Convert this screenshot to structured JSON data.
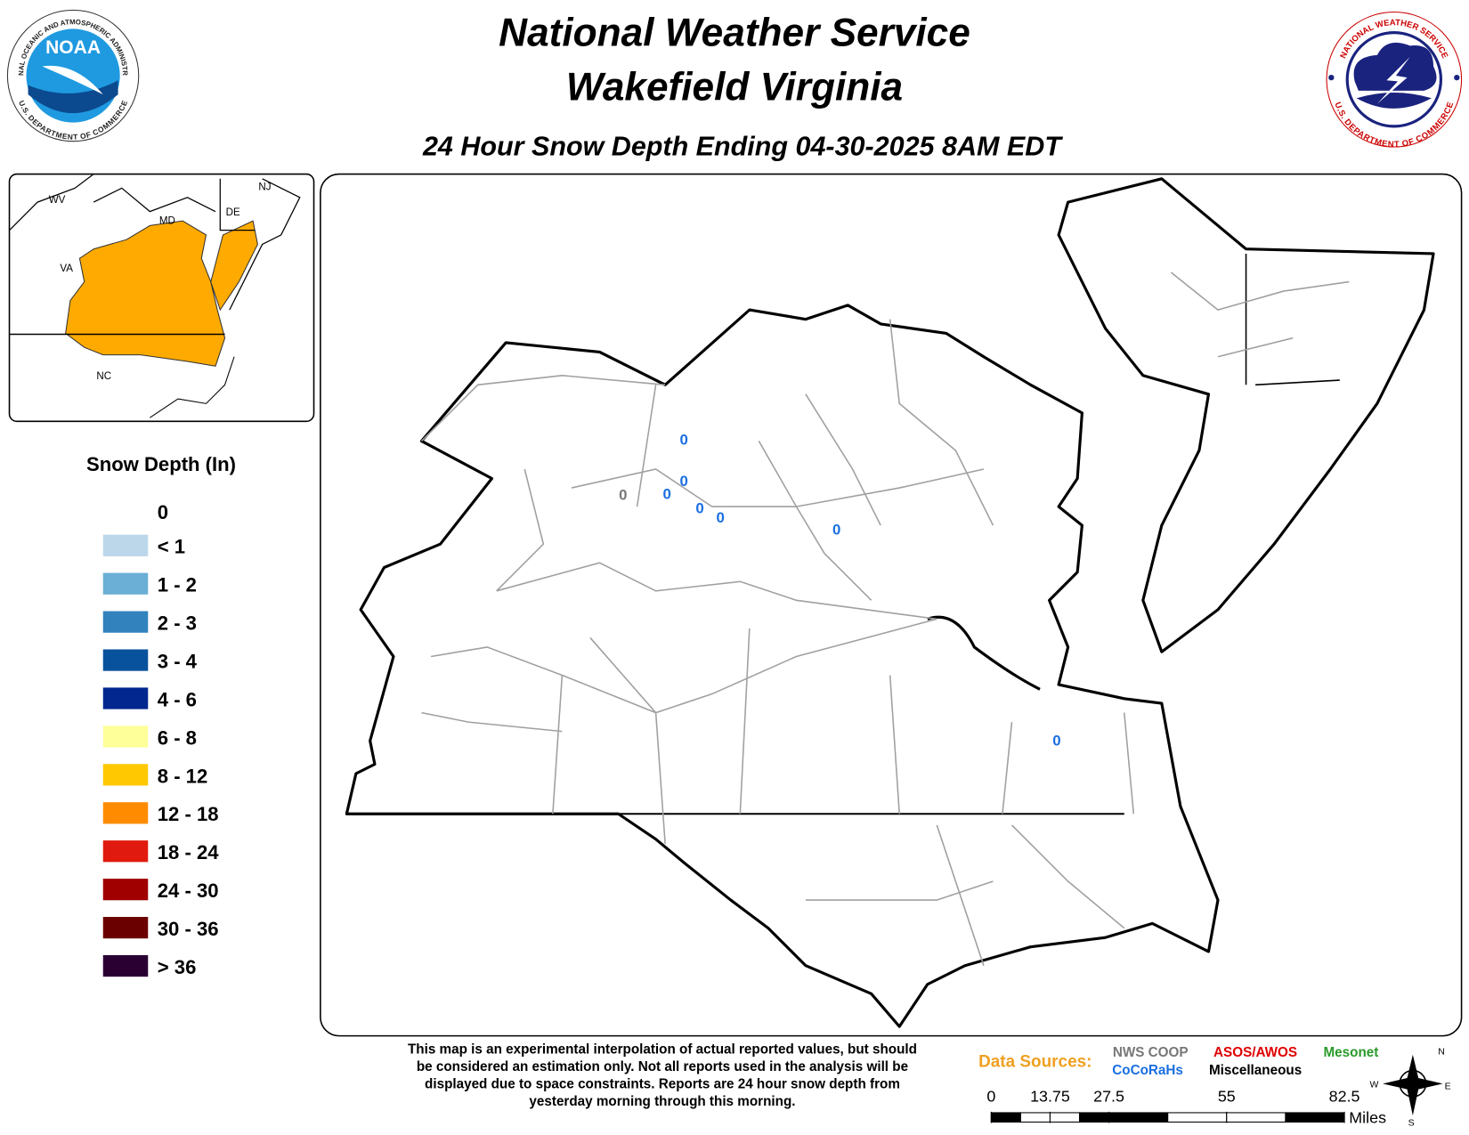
{
  "header": {
    "title": "National Weather Service",
    "office": "Wakefield Virginia",
    "subtitle": "24 Hour Snow Depth Ending 04-30-2025 8AM EDT"
  },
  "logos": {
    "noaa": "NOAA",
    "noaa_ring_top": "NATIONAL OCEANIC AND ATMOSPHERIC ADMINISTRATION",
    "noaa_ring_bottom": "U.S. DEPARTMENT OF COMMERCE",
    "nws_ring_top": "NATIONAL WEATHER SERVICE",
    "nws_ring_bottom": "U.S. DEPARTMENT OF COMMERCE"
  },
  "inset": {
    "labels": [
      "WV",
      "MD",
      "DE",
      "NJ",
      "VA",
      "NC"
    ]
  },
  "legend": {
    "title": "Snow Depth (In)",
    "zero": "0",
    "items": [
      {
        "label": "< 1",
        "color": "#bcd7ea"
      },
      {
        "label": "1 - 2",
        "color": "#6baed6"
      },
      {
        "label": "2 - 3",
        "color": "#3182bd"
      },
      {
        "label": "3 - 4",
        "color": "#08519c"
      },
      {
        "label": "4 - 6",
        "color": "#02288f"
      },
      {
        "label": "6 - 8",
        "color": "#ffff99"
      },
      {
        "label": "8 - 12",
        "color": "#ffc800"
      },
      {
        "label": "12 - 18",
        "color": "#ff8c00"
      },
      {
        "label": "18 - 24",
        "color": "#e01a0e"
      },
      {
        "label": "24 - 30",
        "color": "#a00000"
      },
      {
        "label": "30 - 36",
        "color": "#6b0000"
      },
      {
        "label": "> 36",
        "color": "#2a0033"
      }
    ]
  },
  "observations": [
    {
      "value": 0,
      "color": "#1a6fe0"
    },
    {
      "value": 0,
      "color": "#1a6fe0"
    },
    {
      "value": 0,
      "color": "#1a6fe0"
    },
    {
      "value": 0,
      "color": "#777777"
    },
    {
      "value": 0,
      "color": "#1a6fe0"
    },
    {
      "value": 0,
      "color": "#1a6fe0"
    },
    {
      "value": 0,
      "color": "#1a6fe0"
    },
    {
      "value": 0,
      "color": "#1a6fe0"
    }
  ],
  "disclaimer": [
    "This map is an experimental interpolation of actual reported values, but should",
    "be considered an estimation only. Not all reports used in the analysis will be",
    "displayed due to space constraints. Reports are 24 hour snow depth from",
    "yesterday morning through this morning."
  ],
  "sources": {
    "title": "Data Sources:",
    "items": [
      {
        "label": "NWS COOP",
        "color": "#777777"
      },
      {
        "label": "ASOS/AWOS",
        "color": "#e00000"
      },
      {
        "label": "Mesonet",
        "color": "#2a9a2a"
      },
      {
        "label": "CoCoRaHs",
        "color": "#1a6fe0"
      },
      {
        "label": "Miscellaneous",
        "color": "#000000"
      }
    ]
  },
  "scale": {
    "ticks": [
      0,
      13.75,
      27.5,
      55,
      82.5
    ],
    "unit": "Miles"
  },
  "compass": [
    "N",
    "E",
    "S",
    "W"
  ]
}
